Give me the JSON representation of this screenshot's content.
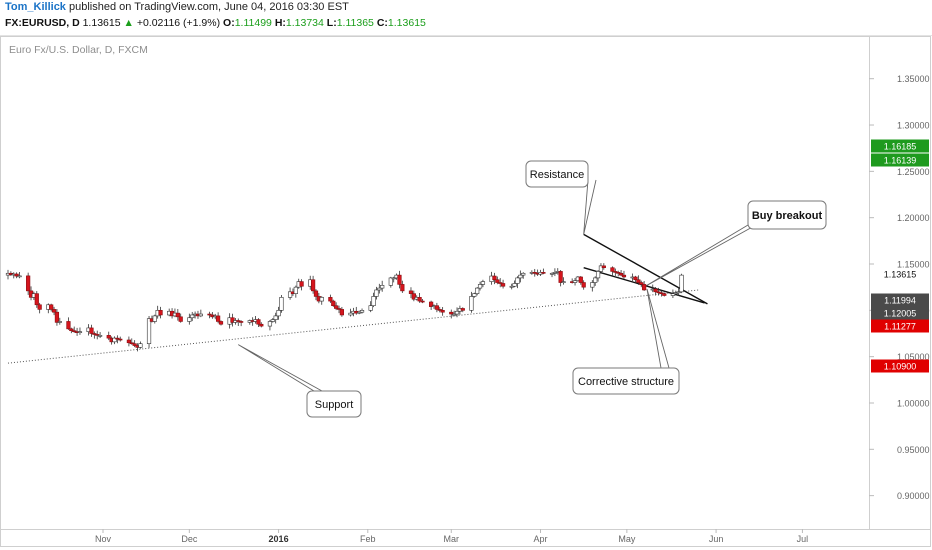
{
  "header": {
    "author": "Tom_Killick",
    "published_text": "published on TradingView.com, June 04, 2016 03:30 EST",
    "symbol": "FX:EURUSD, D",
    "last": "1.13615",
    "change_arrow": "▲",
    "change": "+0.02116 (+1.9%)",
    "o_label": "O:",
    "o_val": "1.11499",
    "h_label": "H:",
    "h_val": "1.13734",
    "l_label": "L:",
    "l_val": "1.11365",
    "c_label": "C:",
    "c_val": "1.13615"
  },
  "chart_data": {
    "type": "candlestick",
    "title": "Euro Fx/U.S. Dollar, D, FXCM",
    "xlabel": "",
    "ylabel": "",
    "ylim": [
      0.864,
      1.395
    ],
    "grid": false,
    "y_ticks": [
      "1.35000",
      "1.30000",
      "1.25000",
      "1.20000",
      "1.15000",
      "1.10000",
      "1.05000",
      "1.00000",
      "0.95000",
      "0.90000"
    ],
    "y_tick_values": [
      1.35,
      1.3,
      1.25,
      1.2,
      1.15,
      1.1,
      1.05,
      1.0,
      0.95,
      0.9
    ],
    "x_ticks": [
      {
        "label": "Nov",
        "day": 33,
        "bold": false
      },
      {
        "label": "Dec",
        "day": 63,
        "bold": false
      },
      {
        "label": "2016",
        "day": 94,
        "bold": true
      },
      {
        "label": "Feb",
        "day": 125,
        "bold": false
      },
      {
        "label": "Mar",
        "day": 154,
        "bold": false
      },
      {
        "label": "Apr",
        "day": 185,
        "bold": false
      },
      {
        "label": "May",
        "day": 215,
        "bold": false
      },
      {
        "label": "Jun",
        "day": 246,
        "bold": false
      },
      {
        "label": "Jul",
        "day": 276,
        "bold": false
      }
    ],
    "x_range_days": [
      0,
      296
    ],
    "price_labels": [
      {
        "text": "1.16185",
        "value": 1.16185,
        "color": "#1e9a1e"
      },
      {
        "text": "1.16139",
        "value": 1.16139,
        "color": "#1e9a1e"
      },
      {
        "text": "1.13615",
        "value": 1.13615,
        "color": "#ffffff"
      },
      {
        "text": "1.11994",
        "value": 1.11994,
        "color": "#4a4a4a"
      },
      {
        "text": "1.12005",
        "value": 1.12005,
        "color": "#4a4a4a"
      },
      {
        "text": "1.11277",
        "value": 1.11277,
        "color": "#e00000"
      },
      {
        "text": "1.10900",
        "value": 1.109,
        "color": "#e00000"
      }
    ],
    "closes": [
      {
        "day": 0,
        "close": 1.14
      },
      {
        "day": 1,
        "close": 1.1385
      },
      {
        "day": 2,
        "close": 1.1392
      },
      {
        "day": 3,
        "close": 1.137
      },
      {
        "day": 4,
        "close": 1.1372
      },
      {
        "day": 7,
        "close": 1.121
      },
      {
        "day": 8,
        "close": 1.114
      },
      {
        "day": 9,
        "close": 1.118
      },
      {
        "day": 10,
        "close": 1.106
      },
      {
        "day": 11,
        "close": 1.101
      },
      {
        "day": 14,
        "close": 1.106
      },
      {
        "day": 15,
        "close": 1.101
      },
      {
        "day": 16,
        "close": 1.098
      },
      {
        "day": 17,
        "close": 1.087
      },
      {
        "day": 18,
        "close": 1.088
      },
      {
        "day": 21,
        "close": 1.08
      },
      {
        "day": 22,
        "close": 1.078
      },
      {
        "day": 23,
        "close": 1.077
      },
      {
        "day": 24,
        "close": 1.076
      },
      {
        "day": 25,
        "close": 1.077
      },
      {
        "day": 28,
        "close": 1.081
      },
      {
        "day": 29,
        "close": 1.075
      },
      {
        "day": 30,
        "close": 1.074
      },
      {
        "day": 31,
        "close": 1.073
      },
      {
        "day": 32,
        "close": 1.073
      },
      {
        "day": 35,
        "close": 1.07
      },
      {
        "day": 36,
        "close": 1.066
      },
      {
        "day": 37,
        "close": 1.07
      },
      {
        "day": 38,
        "close": 1.069
      },
      {
        "day": 39,
        "close": 1.068
      },
      {
        "day": 42,
        "close": 1.065
      },
      {
        "day": 43,
        "close": 1.064
      },
      {
        "day": 44,
        "close": 1.062
      },
      {
        "day": 45,
        "close": 1.06
      },
      {
        "day": 46,
        "close": 1.064
      },
      {
        "day": 49,
        "close": 1.091
      },
      {
        "day": 50,
        "close": 1.088
      },
      {
        "day": 51,
        "close": 1.094
      },
      {
        "day": 52,
        "close": 1.1
      },
      {
        "day": 53,
        "close": 1.095
      },
      {
        "day": 56,
        "close": 1.099
      },
      {
        "day": 57,
        "close": 1.094
      },
      {
        "day": 58,
        "close": 1.097
      },
      {
        "day": 59,
        "close": 1.093
      },
      {
        "day": 60,
        "close": 1.088
      },
      {
        "day": 63,
        "close": 1.092
      },
      {
        "day": 64,
        "close": 1.095
      },
      {
        "day": 65,
        "close": 1.096
      },
      {
        "day": 66,
        "close": 1.094
      },
      {
        "day": 67,
        "close": 1.096
      },
      {
        "day": 70,
        "close": 1.095
      },
      {
        "day": 71,
        "close": 1.093
      },
      {
        "day": 72,
        "close": 1.094
      },
      {
        "day": 73,
        "close": 1.088
      },
      {
        "day": 74,
        "close": 1.085
      },
      {
        "day": 77,
        "close": 1.092
      },
      {
        "day": 78,
        "close": 1.087
      },
      {
        "day": 79,
        "close": 1.089
      },
      {
        "day": 80,
        "close": 1.088
      },
      {
        "day": 81,
        "close": 1.087
      },
      {
        "day": 84,
        "close": 1.089
      },
      {
        "day": 85,
        "close": 1.088
      },
      {
        "day": 86,
        "close": 1.09
      },
      {
        "day": 87,
        "close": 1.085
      },
      {
        "day": 88,
        "close": 1.083
      },
      {
        "day": 91,
        "close": 1.088
      },
      {
        "day": 92,
        "close": 1.09
      },
      {
        "day": 93,
        "close": 1.094
      },
      {
        "day": 94,
        "close": 1.1
      },
      {
        "day": 95,
        "close": 1.114
      },
      {
        "day": 98,
        "close": 1.12
      },
      {
        "day": 99,
        "close": 1.118
      },
      {
        "day": 100,
        "close": 1.125
      },
      {
        "day": 101,
        "close": 1.131
      },
      {
        "day": 102,
        "close": 1.126
      },
      {
        "day": 105,
        "close": 1.133
      },
      {
        "day": 106,
        "close": 1.121
      },
      {
        "day": 107,
        "close": 1.115
      },
      {
        "day": 108,
        "close": 1.11
      },
      {
        "day": 109,
        "close": 1.114
      },
      {
        "day": 112,
        "close": 1.11
      },
      {
        "day": 113,
        "close": 1.105
      },
      {
        "day": 114,
        "close": 1.102
      },
      {
        "day": 115,
        "close": 1.101
      },
      {
        "day": 116,
        "close": 1.095
      },
      {
        "day": 119,
        "close": 1.097
      },
      {
        "day": 120,
        "close": 1.099
      },
      {
        "day": 121,
        "close": 1.097
      },
      {
        "day": 122,
        "close": 1.098
      },
      {
        "day": 123,
        "close": 1.1
      },
      {
        "day": 126,
        "close": 1.105
      },
      {
        "day": 127,
        "close": 1.115
      },
      {
        "day": 128,
        "close": 1.122
      },
      {
        "day": 129,
        "close": 1.124
      },
      {
        "day": 130,
        "close": 1.127
      },
      {
        "day": 133,
        "close": 1.135
      },
      {
        "day": 134,
        "close": 1.135
      },
      {
        "day": 135,
        "close": 1.138
      },
      {
        "day": 136,
        "close": 1.128
      },
      {
        "day": 137,
        "close": 1.121
      },
      {
        "day": 140,
        "close": 1.118
      },
      {
        "day": 141,
        "close": 1.112
      },
      {
        "day": 142,
        "close": 1.114
      },
      {
        "day": 143,
        "close": 1.11
      },
      {
        "day": 144,
        "close": 1.109
      },
      {
        "day": 147,
        "close": 1.104
      },
      {
        "day": 148,
        "close": 1.105
      },
      {
        "day": 149,
        "close": 1.101
      },
      {
        "day": 150,
        "close": 1.1
      },
      {
        "day": 151,
        "close": 1.098
      },
      {
        "day": 154,
        "close": 1.096
      },
      {
        "day": 155,
        "close": 1.096
      },
      {
        "day": 156,
        "close": 1.099
      },
      {
        "day": 157,
        "close": 1.102
      },
      {
        "day": 158,
        "close": 1.1
      },
      {
        "day": 161,
        "close": 1.115
      },
      {
        "day": 162,
        "close": 1.118
      },
      {
        "day": 163,
        "close": 1.124
      },
      {
        "day": 164,
        "close": 1.128
      },
      {
        "day": 165,
        "close": 1.131
      },
      {
        "day": 168,
        "close": 1.137
      },
      {
        "day": 169,
        "close": 1.133
      },
      {
        "day": 170,
        "close": 1.13
      },
      {
        "day": 171,
        "close": 1.129
      },
      {
        "day": 172,
        "close": 1.126
      },
      {
        "day": 175,
        "close": 1.126
      },
      {
        "day": 176,
        "close": 1.129
      },
      {
        "day": 177,
        "close": 1.135
      },
      {
        "day": 178,
        "close": 1.138
      },
      {
        "day": 179,
        "close": 1.14
      },
      {
        "day": 182,
        "close": 1.141
      },
      {
        "day": 183,
        "close": 1.14
      },
      {
        "day": 184,
        "close": 1.139
      },
      {
        "day": 185,
        "close": 1.141
      },
      {
        "day": 186,
        "close": 1.14
      },
      {
        "day": 189,
        "close": 1.14
      },
      {
        "day": 190,
        "close": 1.141
      },
      {
        "day": 191,
        "close": 1.142
      },
      {
        "day": 192,
        "close": 1.13
      },
      {
        "day": 193,
        "close": 1.131
      },
      {
        "day": 196,
        "close": 1.13
      },
      {
        "day": 197,
        "close": 1.132
      },
      {
        "day": 198,
        "close": 1.136
      },
      {
        "day": 199,
        "close": 1.13
      },
      {
        "day": 200,
        "close": 1.125
      },
      {
        "day": 203,
        "close": 1.13
      },
      {
        "day": 204,
        "close": 1.135
      },
      {
        "day": 205,
        "close": 1.142
      },
      {
        "day": 206,
        "close": 1.148
      },
      {
        "day": 207,
        "close": 1.146
      },
      {
        "day": 210,
        "close": 1.142
      },
      {
        "day": 211,
        "close": 1.141
      },
      {
        "day": 212,
        "close": 1.14
      },
      {
        "day": 213,
        "close": 1.138
      },
      {
        "day": 214,
        "close": 1.136
      },
      {
        "day": 217,
        "close": 1.136
      },
      {
        "day": 218,
        "close": 1.133
      },
      {
        "day": 219,
        "close": 1.13
      },
      {
        "day": 220,
        "close": 1.128
      },
      {
        "day": 221,
        "close": 1.122
      },
      {
        "day": 224,
        "close": 1.123
      },
      {
        "day": 225,
        "close": 1.12
      },
      {
        "day": 226,
        "close": 1.119
      },
      {
        "day": 227,
        "close": 1.118
      },
      {
        "day": 228,
        "close": 1.116
      },
      {
        "day": 231,
        "close": 1.118
      },
      {
        "day": 232,
        "close": 1.119
      },
      {
        "day": 233,
        "close": 1.12
      },
      {
        "day": 234,
        "close": 1.138
      }
    ],
    "trendlines": [
      {
        "name": "support",
        "style": "dotted",
        "from": {
          "day": 0,
          "price": 1.043
        },
        "to": {
          "day": 240,
          "price": 1.122
        }
      },
      {
        "name": "resistance",
        "style": "solid",
        "from": {
          "day": 200,
          "price": 1.182
        },
        "to": {
          "day": 243,
          "price": 1.107
        }
      },
      {
        "name": "lower-wedge",
        "style": "solid",
        "from": {
          "day": 200,
          "price": 1.146
        },
        "to": {
          "day": 242,
          "price": 1.108
        }
      }
    ],
    "annotations": [
      {
        "key": "resistance",
        "text": "Resistance",
        "bold": false,
        "anchor": {
          "day": 200,
          "price": 1.182
        }
      },
      {
        "key": "buy",
        "text": "Buy breakout",
        "bold": true,
        "anchor": {
          "day": 222,
          "price": 1.127
        }
      },
      {
        "key": "corrective",
        "text": "Corrective structure",
        "bold": false,
        "anchor": {
          "day": 222,
          "price": 1.123
        }
      },
      {
        "key": "support",
        "text": "Support",
        "bold": false,
        "anchor": {
          "day": 80,
          "price": 1.063
        }
      }
    ]
  }
}
